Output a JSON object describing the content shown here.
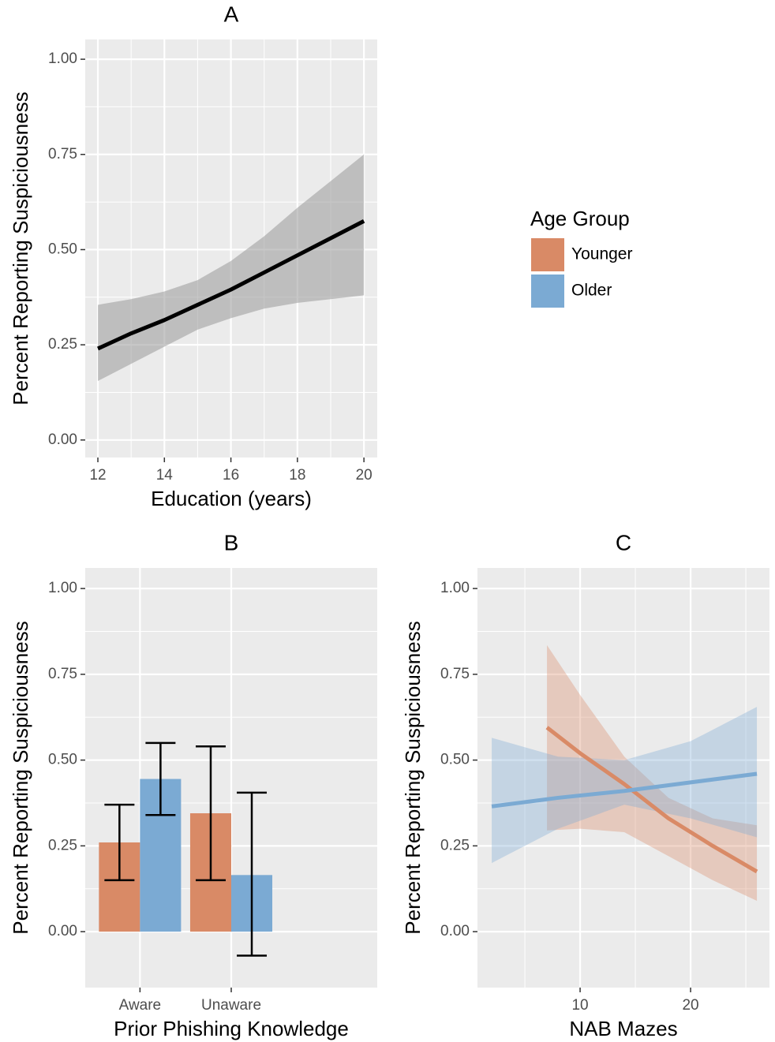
{
  "chart_data": [
    {
      "type": "line",
      "title": "A",
      "xlabel": "Education (years)",
      "ylabel": "Percent Reporting Suspiciousness",
      "x": [
        12,
        13,
        14,
        15,
        16,
        17,
        18,
        19,
        20
      ],
      "values": [
        0.24,
        0.28,
        0.315,
        0.355,
        0.395,
        0.44,
        0.485,
        0.53,
        0.575
      ],
      "lower": [
        0.155,
        0.2,
        0.245,
        0.29,
        0.32,
        0.345,
        0.36,
        0.37,
        0.38
      ],
      "upper": [
        0.355,
        0.37,
        0.39,
        0.42,
        0.47,
        0.535,
        0.61,
        0.68,
        0.75
      ],
      "color": "#000000",
      "band_color": "#999999",
      "xlim": [
        11.62,
        20.4
      ],
      "xticks": [
        12,
        14,
        16,
        18,
        20
      ],
      "ylim": [
        -0.046,
        1.052
      ],
      "yticks": [
        {
          "value": 0,
          "label": "0.00"
        },
        0.25,
        {
          "value": 0.5,
          "label": "0.50"
        },
        0.75,
        {
          "value": 1,
          "label": "1.00"
        }
      ],
      "grid": true
    },
    {
      "type": "bar",
      "title": "B",
      "xlabel": "Prior Phishing Knowledge",
      "ylabel": "Percent Reporting Suspiciousness",
      "legend_title": "Age Group",
      "categories": [
        "Aware",
        "Unaware"
      ],
      "series": [
        {
          "name": "Younger",
          "color": "#d98a66",
          "values": [
            0.26,
            0.345
          ],
          "lower": [
            0.15,
            0.15
          ],
          "upper": [
            0.37,
            0.54
          ]
        },
        {
          "name": "Older",
          "color": "#7baad3",
          "values": [
            0.445,
            0.165
          ],
          "lower": [
            0.34,
            -0.07
          ],
          "upper": [
            0.55,
            0.405
          ]
        }
      ],
      "ylim": [
        -0.163,
        1.06
      ],
      "yticks": [
        {
          "value": 0,
          "label": "0.00"
        },
        0.25,
        {
          "value": 0.5,
          "label": "0.50"
        },
        0.75,
        {
          "value": 1,
          "label": "1.00"
        }
      ],
      "grid": true
    },
    {
      "type": "line",
      "title": "C",
      "xlabel": "NAB Mazes",
      "ylabel": "Percent Reporting Suspiciousness",
      "series": [
        {
          "name": "Younger",
          "color": "#d98a66",
          "x": [
            7,
            10,
            14,
            18,
            22,
            26
          ],
          "values": [
            0.595,
            0.52,
            0.43,
            0.33,
            0.25,
            0.175
          ],
          "lower": [
            0.295,
            0.3,
            0.29,
            0.22,
            0.15,
            0.09
          ],
          "upper": [
            0.835,
            0.69,
            0.51,
            0.39,
            0.33,
            0.31
          ]
        },
        {
          "name": "Older",
          "color": "#7baad3",
          "x": [
            2,
            8,
            14,
            20,
            26
          ],
          "values": [
            0.365,
            0.39,
            0.41,
            0.435,
            0.46
          ],
          "lower": [
            0.2,
            0.3,
            0.37,
            0.33,
            0.275
          ],
          "upper": [
            0.565,
            0.51,
            0.5,
            0.555,
            0.655
          ]
        }
      ],
      "xlim": [
        0.71,
        27.14
      ],
      "xticks": [
        10,
        20
      ],
      "ylim": [
        -0.163,
        1.06
      ],
      "yticks": [
        {
          "value": 0,
          "label": "0.00"
        },
        0.25,
        {
          "value": 0.5,
          "label": "0.50"
        },
        0.75,
        {
          "value": 1,
          "label": "1.00"
        }
      ],
      "grid": true
    }
  ]
}
